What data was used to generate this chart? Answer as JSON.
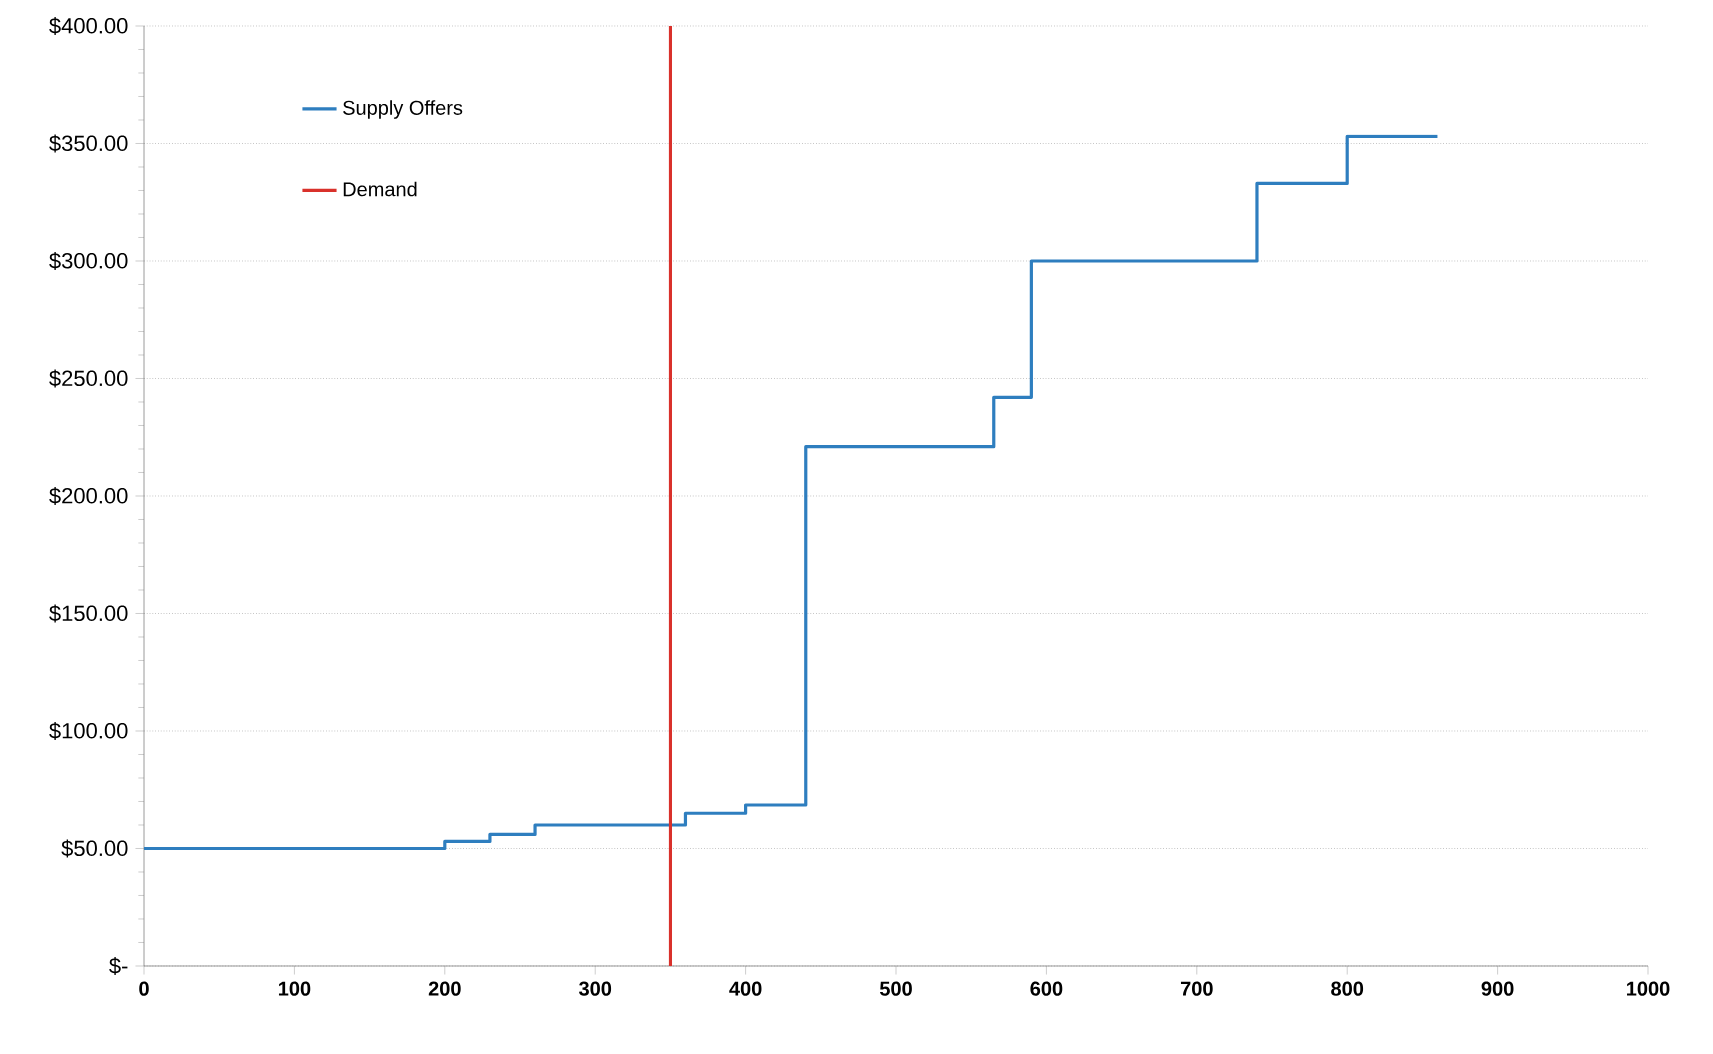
{
  "chart_data": {
    "type": "step",
    "series": [
      {
        "name": "Supply Offers",
        "color": "#2e7ebf",
        "x": [
          0,
          200,
          230,
          260,
          360,
          400,
          440,
          565,
          590,
          740,
          800,
          860
        ],
        "values": [
          50,
          53,
          56,
          60,
          65,
          68.5,
          221,
          242,
          300,
          333,
          353,
          353
        ]
      },
      {
        "name": "Demand",
        "type": "line",
        "color": "#d9312b",
        "x": [
          350,
          350
        ],
        "values": [
          0,
          400
        ]
      }
    ],
    "xlim": [
      0,
      1000
    ],
    "xticks": [
      0,
      100,
      200,
      300,
      400,
      500,
      600,
      700,
      800,
      900,
      1000
    ],
    "ylim": [
      0,
      400
    ],
    "yticks": [
      {
        "value": 0,
        "label": "$-"
      },
      {
        "value": 50,
        "label": "$50.00"
      },
      {
        "value": 100,
        "label": "$100.00"
      },
      {
        "value": 150,
        "label": "$150.00"
      },
      {
        "value": 200,
        "label": "$200.00"
      },
      {
        "value": 250,
        "label": "$250.00"
      },
      {
        "value": 300,
        "label": "$300.00"
      },
      {
        "value": 350,
        "label": "$350.00"
      },
      {
        "value": 400,
        "label": "$400.00"
      }
    ],
    "grid": "y",
    "legend": "top left"
  }
}
